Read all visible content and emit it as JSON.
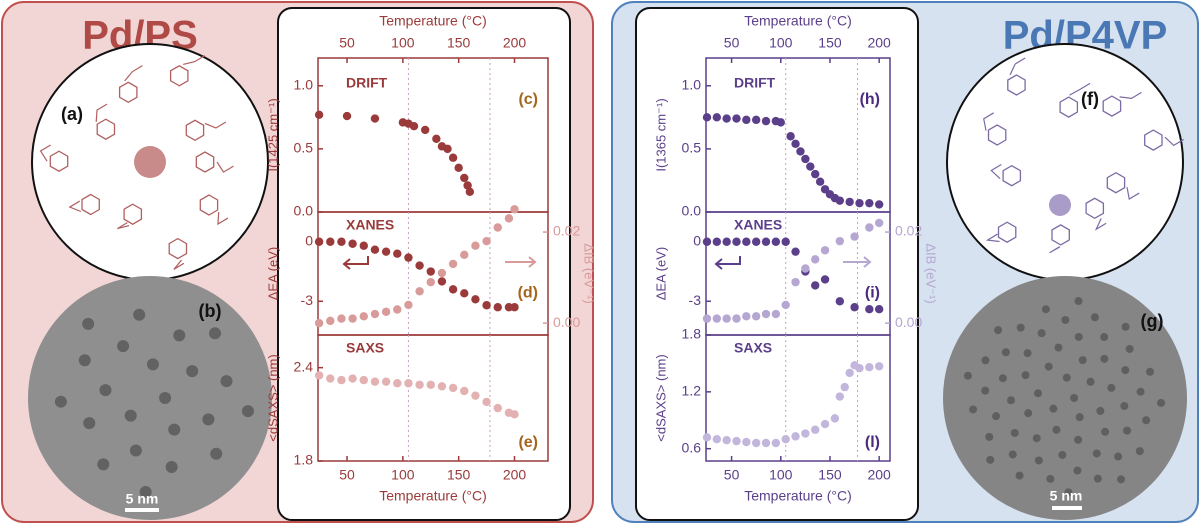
{
  "panels": [
    {
      "title": "Pd/PS",
      "scheme_label": "(a)",
      "image_label": "(b)",
      "scale_bar": "5 nm"
    },
    {
      "title": "Pd/P4VP",
      "scheme_label": "(f)",
      "image_label": "(g)",
      "scale_bar": "5 nm"
    }
  ],
  "chart_data": [
    {
      "type": "scatter",
      "title": "DRIFT",
      "panel_label": "(c)",
      "axis_color": "#9b3a3a",
      "label_color": "#a5651b",
      "xlabel": "Temperature (°C)",
      "xaxis": "top",
      "xlim": [
        24,
        230
      ],
      "xticks": [
        50,
        100,
        150,
        200
      ],
      "ylabel": "I(1425 cm⁻¹)",
      "ylim": [
        0,
        1.22
      ],
      "yticks": [
        {
          "value": 0,
          "label": "0.0"
        },
        {
          "value": 0.5,
          "label": "0.5"
        },
        {
          "value": 1,
          "label": "1.0"
        }
      ],
      "vlines": [
        105,
        178
      ],
      "x": [
        25,
        50,
        75,
        100,
        105,
        110,
        120,
        130,
        135,
        140,
        145,
        150,
        155,
        158,
        160
      ],
      "series": [
        {
          "color": "#9b3a3a",
          "values": [
            0.77,
            0.76,
            0.74,
            0.71,
            0.7,
            0.68,
            0.65,
            0.58,
            0.52,
            0.5,
            0.43,
            0.35,
            0.27,
            0.21,
            0.16
          ]
        }
      ]
    },
    {
      "type": "scatter",
      "title": "XANES",
      "panel_label": "(d)",
      "axis_color": "#9b3a3a",
      "y2_color": "#d99a9a",
      "label_color": "#a5651b",
      "xlim": [
        24,
        230
      ],
      "ylabel": "ΔEA (eV)",
      "ylim": [
        -4.7,
        1.5
      ],
      "yticks": [
        -3,
        0
      ],
      "y2label": "ΔIB (eV⁻¹)",
      "y2lim": [
        -0.0026,
        0.0244
      ],
      "y2ticks": [
        {
          "value": 0,
          "label": "0.00"
        },
        {
          "value": 0.02,
          "label": "0.02"
        }
      ],
      "vlines": [
        105,
        178
      ],
      "x": [
        25,
        35,
        45,
        55,
        65,
        75,
        85,
        95,
        105,
        115,
        125,
        135,
        145,
        155,
        165,
        175,
        185,
        195,
        200
      ],
      "series": [
        {
          "color": "#9b3a3a",
          "values": [
            0,
            0,
            0,
            -0.1,
            -0.2,
            -0.4,
            -0.5,
            -0.6,
            -0.8,
            -1.2,
            -1.5,
            -2,
            -2.4,
            -2.6,
            -2.9,
            -3.2,
            -3.3,
            -3.3,
            -3.3
          ]
        },
        {
          "color": "#d99a9a",
          "axis": "y2",
          "values": [
            0,
            0.0005,
            0.001,
            0.001,
            0.0015,
            0.002,
            0.0025,
            0.003,
            0.004,
            0.007,
            0.009,
            0.011,
            0.013,
            0.015,
            0.017,
            0.018,
            0.021,
            0.023,
            0.025
          ]
        }
      ]
    },
    {
      "type": "scatter",
      "title": "SAXS",
      "panel_label": "(e)",
      "axis_color": "#9b3a3a",
      "label_color": "#a5651b",
      "xlabel": "Temperature (°C)",
      "xaxis": "bottom",
      "xlim": [
        24,
        230
      ],
      "xticks": [
        50,
        100,
        150,
        200
      ],
      "ylabel": "<dSAXS> (nm)",
      "ylim": [
        1.8,
        2.61
      ],
      "yticks": [
        1.8,
        2.4
      ],
      "vlines": [
        105,
        178
      ],
      "x": [
        25,
        35,
        45,
        55,
        65,
        75,
        85,
        95,
        105,
        115,
        125,
        135,
        145,
        155,
        165,
        175,
        185,
        195,
        200
      ],
      "series": [
        {
          "color": "#e3b1b1",
          "values": [
            2.35,
            2.33,
            2.32,
            2.33,
            2.32,
            2.31,
            2.31,
            2.3,
            2.3,
            2.29,
            2.29,
            2.28,
            2.27,
            2.25,
            2.22,
            2.18,
            2.14,
            2.11,
            2.1
          ]
        }
      ]
    },
    {
      "type": "scatter",
      "title": "DRIFT",
      "panel_label": "(h)",
      "axis_color": "#5b3f8a",
      "label_color": "#4b2b7f",
      "xlabel": "Temperature (°C)",
      "xaxis": "top",
      "xlim": [
        24,
        211
      ],
      "xticks": [
        50,
        100,
        150,
        200
      ],
      "ylabel": "I(1365 cm⁻¹)",
      "ylim": [
        0,
        1.22
      ],
      "yticks": [
        {
          "value": 0,
          "label": "0.0"
        },
        {
          "value": 0.5,
          "label": "0.5"
        },
        {
          "value": 1,
          "label": "1.0"
        }
      ],
      "vlines": [
        105,
        178
      ],
      "x": [
        25,
        35,
        45,
        55,
        65,
        75,
        85,
        95,
        100,
        110,
        115,
        120,
        125,
        130,
        135,
        140,
        145,
        150,
        155,
        160,
        170,
        180,
        190,
        200
      ],
      "series": [
        {
          "color": "#5b3f8a",
          "values": [
            0.75,
            0.75,
            0.74,
            0.74,
            0.73,
            0.73,
            0.72,
            0.72,
            0.71,
            0.6,
            0.54,
            0.48,
            0.42,
            0.36,
            0.3,
            0.24,
            0.18,
            0.14,
            0.11,
            0.09,
            0.08,
            0.07,
            0.07,
            0.06
          ]
        }
      ]
    },
    {
      "type": "scatter",
      "title": "XANES",
      "panel_label": "(i)",
      "axis_color": "#5b3f8a",
      "y2_color": "#b5a6d2",
      "label_color": "#4b2b7f",
      "xlim": [
        24,
        211
      ],
      "ylabel": "ΔEA (eV)",
      "ylim": [
        -4.7,
        1.5
      ],
      "yticks": [
        -3,
        0
      ],
      "y2label": "ΔIB (eV⁻¹)",
      "y2lim": [
        -0.0026,
        0.0244
      ],
      "y2ticks": [
        {
          "value": 0,
          "label": "0.00"
        },
        {
          "value": 0.02,
          "label": "0.02"
        }
      ],
      "vlines": [
        105,
        178
      ],
      "x": [
        25,
        35,
        45,
        55,
        65,
        75,
        85,
        95,
        105,
        115,
        125,
        135,
        145,
        160,
        175,
        190,
        200
      ],
      "series": [
        {
          "color": "#5b3f8a",
          "values": [
            0,
            0,
            0,
            0,
            0,
            0,
            0,
            0,
            0,
            -0.5,
            -1.5,
            -2.2,
            -1.9,
            -3,
            -3.3,
            -3.4,
            -3.4
          ]
        },
        {
          "color": "#b5a6d2",
          "axis": "y2",
          "values": [
            0.001,
            0.001,
            0.001,
            0.001,
            0.0015,
            0.0015,
            0.002,
            0.002,
            0.004,
            0.009,
            0.012,
            0.014,
            0.016,
            0.018,
            0.019,
            0.021,
            0.022
          ]
        }
      ]
    },
    {
      "type": "scatter",
      "title": "SAXS",
      "panel_label": "(l)",
      "axis_color": "#5b3f8a",
      "label_color": "#4b2b7f",
      "xlabel": "Temperature (°C)",
      "xaxis": "bottom",
      "xlim": [
        24,
        211
      ],
      "xticks": [
        50,
        100,
        150,
        200
      ],
      "ylabel": "<dSAXS> (nm)",
      "ylim": [
        0.47,
        1.8
      ],
      "yticks": [
        0.6,
        1.2,
        1.8
      ],
      "vlines": [
        105,
        178
      ],
      "x": [
        25,
        35,
        45,
        55,
        65,
        75,
        85,
        95,
        105,
        115,
        125,
        135,
        145,
        155,
        160,
        165,
        170,
        175,
        180,
        190,
        200
      ],
      "series": [
        {
          "color": "#c3b6dc",
          "values": [
            0.72,
            0.7,
            0.69,
            0.68,
            0.67,
            0.66,
            0.66,
            0.66,
            0.7,
            0.73,
            0.76,
            0.8,
            0.86,
            0.92,
            1.15,
            1.25,
            1.4,
            1.48,
            1.45,
            1.46,
            1.47
          ]
        }
      ]
    }
  ]
}
